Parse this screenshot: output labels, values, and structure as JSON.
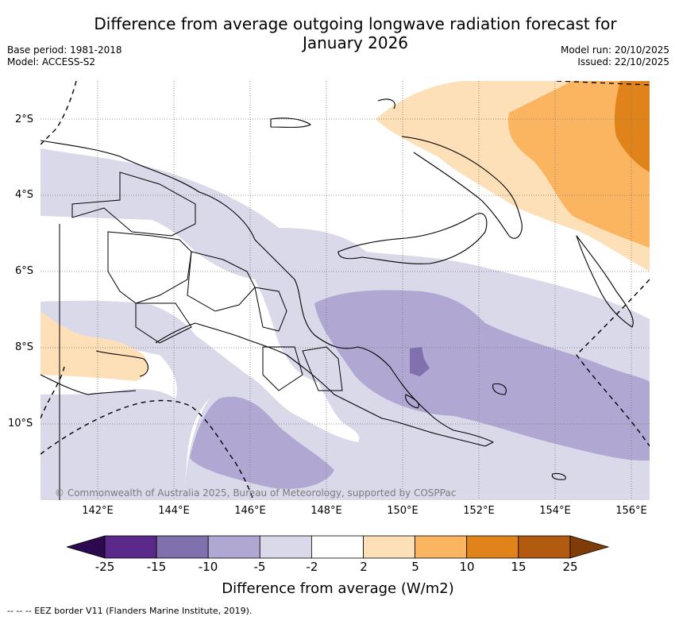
{
  "header": {
    "title_line1": "Difference from average outgoing longwave radiation forecast for",
    "title_line2": "January 2026",
    "base_period": "Base period: 1981-2018",
    "model": "Model: ACCESS-S2",
    "model_run": "Model run: 20/10/2025",
    "issued": "Issued: 22/10/2025"
  },
  "map": {
    "lat_labels": [
      "2°S",
      "4°S",
      "6°S",
      "8°S",
      "10°S"
    ],
    "lon_labels": [
      "142°E",
      "144°E",
      "146°E",
      "148°E",
      "150°E",
      "152°E",
      "154°E",
      "156°E"
    ],
    "copyright": "© Commonwealth of Australia 2025, Bureau of Meteorology, supported by COSPPac"
  },
  "colorbar": {
    "ticks": [
      "-25",
      "-15",
      "-10",
      "-5",
      "-2",
      "2",
      "5",
      "10",
      "15",
      "25"
    ],
    "colors": [
      "#2d0a4f",
      "#5a2a8a",
      "#8070ad",
      "#b0a8d2",
      "#d9d9ea",
      "#ffffff",
      "#fde0b7",
      "#fbb561",
      "#e0831b",
      "#b25a0f",
      "#7f3b08"
    ],
    "label": "Difference from average (W/m2)"
  },
  "footnote": "-- -- -- EEZ border V11 (Flanders Marine Institute, 2019)."
}
